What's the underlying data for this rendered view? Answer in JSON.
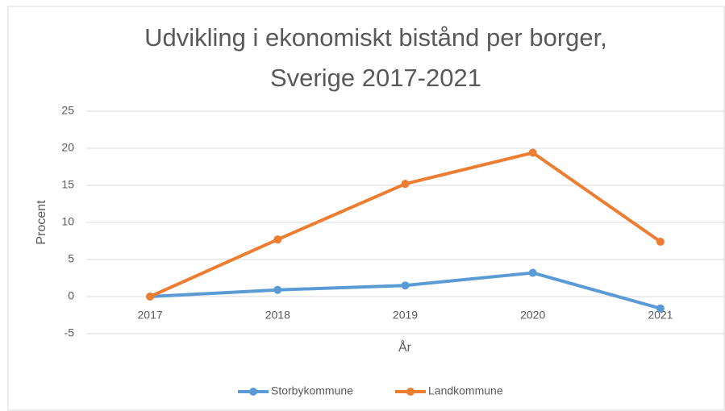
{
  "chart_data": {
    "type": "line",
    "title": "Udvikling i ekonomiskt bistånd per borger, Sverige 2017-2021",
    "x_label": "År",
    "y_label": "Procent",
    "categories": [
      "2017",
      "2018",
      "2019",
      "2020",
      "2021"
    ],
    "series": [
      {
        "name": "Storbykommune",
        "color": "#5b9bd5",
        "values": [
          0,
          0.9,
          1.5,
          3.2,
          -1.6
        ]
      },
      {
        "name": "Landkommune",
        "color": "#ed7d31",
        "values": [
          0,
          7.7,
          15.2,
          19.4,
          7.4
        ]
      }
    ],
    "ylim": [
      -5,
      25
    ],
    "yticks": [
      -5,
      0,
      5,
      10,
      15,
      20,
      25
    ],
    "grid": true,
    "legend": "bottom"
  }
}
